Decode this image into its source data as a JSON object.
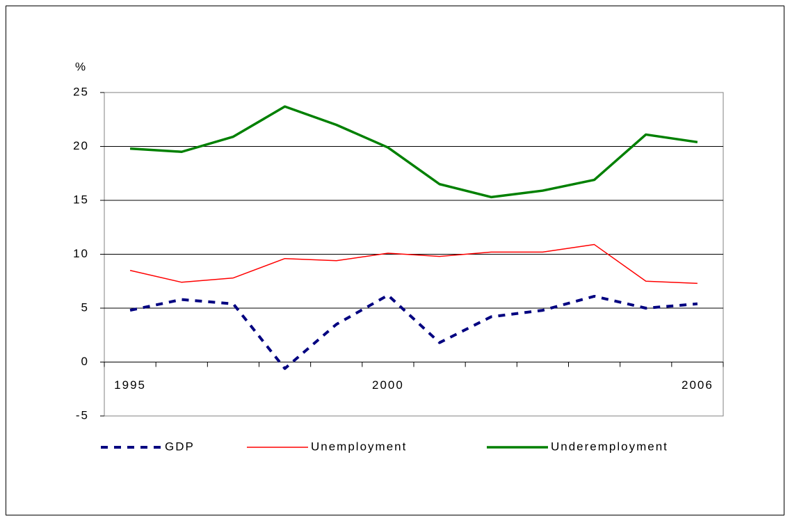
{
  "chart_data": {
    "type": "line",
    "y_label": "%",
    "categories": [
      "1995",
      null,
      null,
      null,
      null,
      "2000",
      null,
      null,
      null,
      null,
      null,
      "2006"
    ],
    "series": [
      {
        "name": "GDP",
        "color": "#000080",
        "dash": true,
        "values": [
          4.8,
          5.8,
          5.4,
          -0.6,
          3.5,
          6.2,
          1.8,
          4.2,
          4.8,
          6.1,
          5.0,
          5.4
        ]
      },
      {
        "name": "Unemployment",
        "color": "#ff0000",
        "values": [
          8.5,
          7.4,
          7.8,
          9.6,
          9.4,
          10.1,
          9.8,
          10.2,
          10.2,
          10.9,
          7.5,
          7.3
        ]
      },
      {
        "name": "Underemployment",
        "color": "#008000",
        "values": [
          19.8,
          19.5,
          20.9,
          23.7,
          22.0,
          19.9,
          16.5,
          15.3,
          15.9,
          16.9,
          21.1,
          20.4
        ]
      }
    ],
    "ylim": [
      -5,
      25
    ],
    "yticks": [
      -5,
      0,
      5,
      10,
      15,
      20,
      25
    ],
    "grid": true,
    "legend": "bottom"
  }
}
